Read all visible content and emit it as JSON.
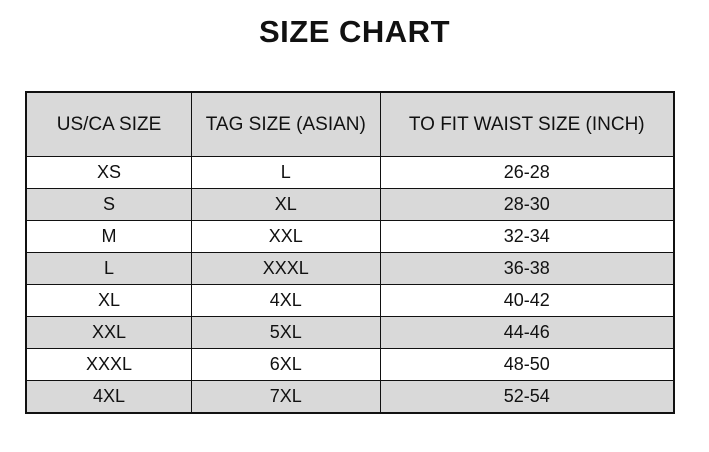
{
  "title": "SIZE CHART",
  "colors": {
    "header_bg": "#d9d9d9",
    "alt_row_bg": "#d9d9d9",
    "border": "#111111"
  },
  "table": {
    "headers": [
      "US/CA SIZE",
      "TAG SIZE (ASIAN)",
      "TO FIT WAIST SIZE (INCH)"
    ],
    "rows": [
      [
        "XS",
        "L",
        "26-28"
      ],
      [
        "S",
        "XL",
        "28-30"
      ],
      [
        "M",
        "XXL",
        "32-34"
      ],
      [
        "L",
        "XXXL",
        "36-38"
      ],
      [
        "XL",
        "4XL",
        "40-42"
      ],
      [
        "XXL",
        "5XL",
        "44-46"
      ],
      [
        "XXXL",
        "6XL",
        "48-50"
      ],
      [
        "4XL",
        "7XL",
        "52-54"
      ]
    ]
  }
}
